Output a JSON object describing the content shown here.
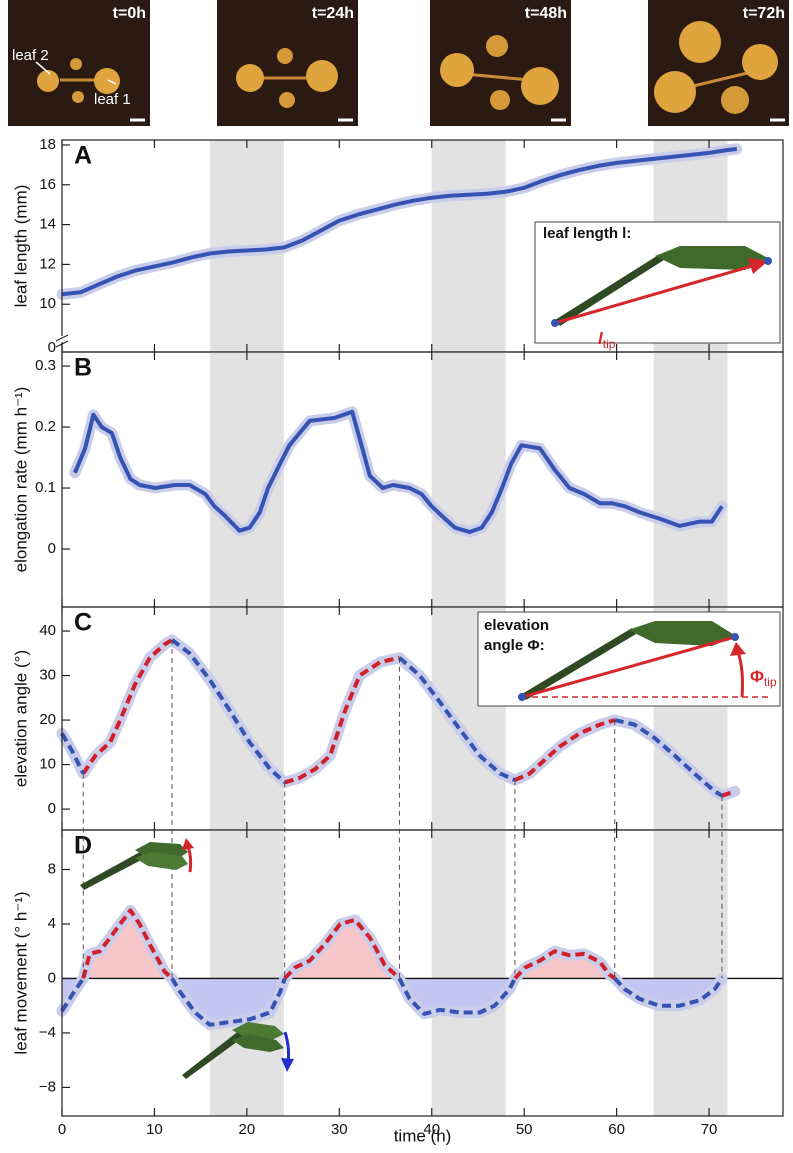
{
  "photos": [
    "t=0h",
    "t=24h",
    "t=48h",
    "t=72h"
  ],
  "photo_annotations": [
    "leaf 2",
    "leaf 1"
  ],
  "chart_data": [
    {
      "type": "line",
      "panel_label": "A",
      "ylabel": "leaf length (mm)",
      "axis_break_label": "0",
      "xlim": [
        0,
        78
      ],
      "ylim": [
        7.6,
        18.25
      ],
      "yticks": [
        10,
        12,
        14,
        16,
        18
      ],
      "shaded_x": [
        [
          16,
          24
        ],
        [
          40,
          48
        ],
        [
          64,
          72
        ]
      ],
      "shade_color": "#e2e2e2",
      "band_color": "#c9cdea",
      "dashed": false,
      "inset": {
        "title": "leaf length l:",
        "symbol": "l",
        "sub": "tip"
      },
      "x": [
        0,
        2,
        4,
        6,
        8,
        10,
        12,
        14,
        16,
        18,
        20,
        22,
        24,
        26,
        28,
        30,
        32,
        34,
        36,
        38,
        40,
        42,
        44,
        46,
        48,
        50,
        52,
        54,
        56,
        58,
        60,
        62,
        64,
        66,
        68,
        70,
        72,
        73
      ],
      "series": [
        {
          "color": "#3453b3",
          "values": [
            10.5,
            10.6,
            11.0,
            11.4,
            11.7,
            11.9,
            12.1,
            12.35,
            12.55,
            12.65,
            12.7,
            12.75,
            12.85,
            13.2,
            13.7,
            14.2,
            14.5,
            14.75,
            15.0,
            15.2,
            15.35,
            15.45,
            15.5,
            15.55,
            15.65,
            15.85,
            16.2,
            16.5,
            16.75,
            16.95,
            17.1,
            17.2,
            17.3,
            17.4,
            17.5,
            17.6,
            17.75,
            17.8
          ]
        }
      ]
    },
    {
      "type": "line",
      "panel_label": "B",
      "ylabel": "elongation rate (mm h⁻¹)",
      "xlim": [
        0,
        78
      ],
      "ylim": [
        -0.095,
        0.323
      ],
      "yticks": [
        0,
        0.1,
        0.2,
        0.3
      ],
      "shaded_x": [
        [
          16,
          24
        ],
        [
          40,
          48
        ],
        [
          64,
          72
        ]
      ],
      "shade_color": "#e2e2e2",
      "band_color": "#c9cdea",
      "dashed": false,
      "x": [
        1.4,
        2.5,
        3.4,
        4.3,
        5.4,
        6.3,
        7.4,
        8.4,
        10.1,
        12.2,
        13.8,
        15.5,
        16.5,
        17.6,
        19.2,
        20.3,
        21.4,
        22.3,
        23.6,
        24.6,
        26.8,
        29.5,
        31.4,
        32.4,
        33.3,
        34.7,
        35.8,
        37.6,
        38.9,
        40,
        41.4,
        42.5,
        44.1,
        45.4,
        46.5,
        47.6,
        48.6,
        49.7,
        51.7,
        53.3,
        54.9,
        56.5,
        58.2,
        59.5,
        60.9,
        62.5,
        64.6,
        66.8,
        69,
        70.3,
        71.4
      ],
      "series": [
        {
          "color": "#3453b3",
          "values": [
            0.125,
            0.165,
            0.22,
            0.2,
            0.19,
            0.15,
            0.115,
            0.105,
            0.1,
            0.105,
            0.105,
            0.09,
            0.07,
            0.055,
            0.03,
            0.035,
            0.06,
            0.1,
            0.14,
            0.17,
            0.21,
            0.215,
            0.225,
            0.17,
            0.12,
            0.1,
            0.105,
            0.1,
            0.09,
            0.07,
            0.05,
            0.035,
            0.028,
            0.035,
            0.06,
            0.1,
            0.14,
            0.17,
            0.165,
            0.13,
            0.1,
            0.09,
            0.075,
            0.075,
            0.07,
            0.06,
            0.05,
            0.038,
            0.045,
            0.045,
            0.07
          ]
        }
      ]
    },
    {
      "type": "line",
      "panel_label": "C",
      "ylabel": "elevation angle (°)",
      "xlim": [
        0,
        78
      ],
      "ylim": [
        -4.7,
        45.4
      ],
      "yticks": [
        0,
        10,
        20,
        30,
        40
      ],
      "shaded_x": [
        [
          16,
          24
        ],
        [
          40,
          48
        ],
        [
          64,
          72
        ]
      ],
      "shade_color": "#e2e2e2",
      "band_color": "#c9cdea",
      "dashed": true,
      "inset": {
        "title_lines": [
          "elevation",
          "angle Φ:"
        ],
        "symbol": "Φ",
        "sub": "tip"
      },
      "x": [
        0,
        1.1,
        2.3,
        3.6,
        5.2,
        6.3,
        7.9,
        9.5,
        11.1,
        11.9,
        13.8,
        16,
        18.2,
        20.3,
        22.5,
        24.1,
        25.7,
        27.4,
        29,
        30.6,
        32.2,
        34.4,
        36.5,
        38.7,
        40.9,
        43,
        45.2,
        47.4,
        49,
        50.6,
        52.2,
        53.8,
        56,
        58.2,
        59.8,
        61.9,
        64.1,
        66.3,
        68.4,
        70.6,
        71.4,
        72.8
      ],
      "series": [
        {
          "color": "#d0202a",
          "values": [
            null,
            null,
            8,
            12,
            15,
            20,
            28,
            34,
            37,
            38,
            null,
            null,
            null,
            null,
            null,
            6,
            7,
            9,
            12,
            22,
            30,
            33,
            34,
            null,
            null,
            null,
            null,
            null,
            6.5,
            8,
            11,
            14,
            17,
            19,
            20,
            null,
            null,
            null,
            null,
            null,
            3,
            4
          ]
        },
        {
          "color": "#3453b3",
          "values": [
            17,
            13,
            8,
            null,
            null,
            null,
            null,
            null,
            null,
            38,
            35,
            29,
            22,
            15,
            9,
            6,
            null,
            null,
            null,
            null,
            null,
            null,
            34,
            30,
            24,
            18,
            12,
            8,
            6.5,
            null,
            null,
            null,
            null,
            null,
            20,
            19,
            16,
            12,
            8,
            4,
            3,
            null
          ]
        }
      ]
    },
    {
      "type": "area",
      "panel_label": "D",
      "ylabel": "leaf movement (° h⁻¹)",
      "xlabel": "time (h)",
      "xlim": [
        0,
        78
      ],
      "xticks": [
        0,
        10,
        20,
        30,
        40,
        50,
        60,
        70
      ],
      "ylim": [
        -10.1,
        10.9
      ],
      "yticks": [
        {
          "value": -8,
          "label": "−8"
        },
        {
          "value": -4,
          "label": "−4"
        },
        0,
        4,
        8
      ],
      "shaded_x": [
        [
          16,
          24
        ],
        [
          40,
          48
        ],
        [
          64,
          72
        ]
      ],
      "shade_color": "#e2e2e2",
      "band_color": "#c9cdea",
      "dashed": true,
      "x": [
        0,
        1.1,
        2.3,
        3,
        4.1,
        5.2,
        6.3,
        7.4,
        8.4,
        9.5,
        11.1,
        11.9,
        12.8,
        14.4,
        16,
        18.2,
        20.3,
        22.5,
        23.6,
        24.1,
        25.2,
        26.8,
        28.4,
        30.1,
        31.7,
        33.3,
        34.9,
        36.5,
        37.6,
        39.2,
        40.9,
        43,
        45.2,
        46.8,
        48.4,
        49,
        50.1,
        51.7,
        53.3,
        54.9,
        56.5,
        58.2,
        59.2,
        59.8,
        60.9,
        62.5,
        64.6,
        66.8,
        69,
        70.6,
        71.4
      ],
      "series": [
        {
          "color": "#d0202a",
          "fill": "#f7c6c8",
          "values": [
            null,
            null,
            0,
            1.8,
            2,
            3,
            4,
            5,
            4,
            2.5,
            0.5,
            0,
            null,
            null,
            null,
            null,
            null,
            null,
            null,
            0,
            0.8,
            1.3,
            2.5,
            4,
            4.3,
            3,
            1,
            0,
            null,
            null,
            null,
            null,
            null,
            null,
            null,
            0,
            0.8,
            1.3,
            2,
            1.7,
            1.8,
            1.2,
            0.3,
            0,
            null,
            null,
            null,
            null,
            null,
            null,
            0
          ]
        },
        {
          "color": "#3453b3",
          "fill": "#c3c6f2",
          "values": [
            -2.4,
            -1.2,
            0,
            null,
            null,
            null,
            null,
            null,
            null,
            null,
            null,
            0,
            -1,
            -2.5,
            -3.4,
            -3.2,
            -3,
            -2.5,
            -1,
            0,
            null,
            null,
            null,
            null,
            null,
            null,
            null,
            0,
            -1.5,
            -2.6,
            -2.3,
            -2.5,
            -2.5,
            -2,
            -0.8,
            0,
            null,
            null,
            null,
            null,
            null,
            null,
            null,
            0,
            -0.8,
            -1.5,
            -2,
            -2,
            -1.6,
            -0.8,
            0
          ]
        }
      ]
    }
  ]
}
